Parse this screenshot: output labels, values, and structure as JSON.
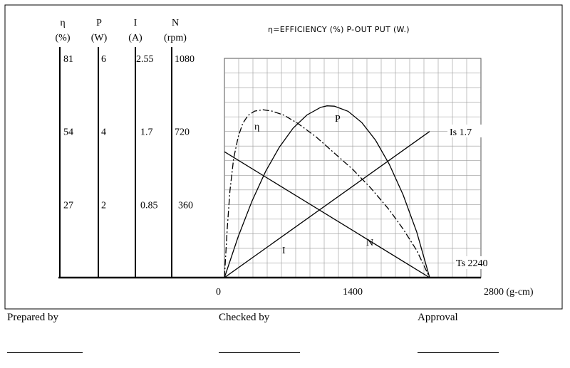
{
  "chart_data": {
    "type": "line",
    "title": "η=EFFICIENCY (%)  P-OUT PUT (W.)",
    "xlabel": "(g-cm)",
    "x_ticks": [
      0,
      1400,
      2800
    ],
    "x_tick_labels": [
      "0",
      "1400",
      "2800"
    ],
    "xlim": [
      0,
      2800
    ],
    "grid": true,
    "axes": [
      {
        "symbol": "η",
        "unit": "(%)",
        "ticks": [
          "81",
          "54",
          "27"
        ],
        "values": [
          81,
          54,
          27
        ],
        "ylim": [
          0,
          81
        ]
      },
      {
        "symbol": "P",
        "unit": "(W)",
        "ticks": [
          "6",
          "4",
          "2"
        ],
        "values": [
          6,
          4,
          2
        ],
        "ylim": [
          0,
          6
        ]
      },
      {
        "symbol": "I",
        "unit": "(A)",
        "ticks": [
          "2.55",
          "1.7",
          "0.85"
        ],
        "values": [
          2.55,
          1.7,
          0.85
        ],
        "ylim": [
          0,
          2.55
        ]
      },
      {
        "symbol": "N",
        "unit": "(rpm)",
        "ticks": [
          "1080",
          "720",
          "360"
        ],
        "values": [
          1080,
          720,
          360
        ],
        "ylim": [
          0,
          1080
        ]
      }
    ],
    "series": [
      {
        "name": "η",
        "axis": "η",
        "style": "dashdot",
        "x": [
          0,
          30,
          60,
          100,
          150,
          200,
          260,
          330,
          420,
          520,
          650,
          800,
          1000,
          1200,
          1400,
          1600,
          1800,
          1950,
          2100,
          2240
        ],
        "y": [
          0,
          18,
          32,
          44,
          52,
          57,
          60,
          61.5,
          62,
          61.5,
          60,
          57,
          52,
          46,
          40,
          33,
          25,
          18,
          10,
          0
        ]
      },
      {
        "name": "P",
        "axis": "P",
        "style": "solid",
        "x": [
          0,
          150,
          300,
          450,
          600,
          750,
          900,
          1050,
          1120,
          1200,
          1350,
          1500,
          1650,
          1800,
          1950,
          2100,
          2240
        ],
        "y": [
          0,
          1.12,
          2.09,
          2.91,
          3.57,
          4.09,
          4.45,
          4.66,
          4.7,
          4.69,
          4.55,
          4.24,
          3.76,
          3.1,
          2.27,
          1.24,
          0
        ]
      },
      {
        "name": "I",
        "axis": "I",
        "style": "solid",
        "x": [
          0,
          2240
        ],
        "y": [
          0,
          1.7
        ]
      },
      {
        "name": "N",
        "axis": "N",
        "style": "solid",
        "x": [
          0,
          2240
        ],
        "y": [
          620,
          0
        ]
      }
    ],
    "annotations": {
      "eta": "η",
      "p": "P",
      "i": "I",
      "n": "N",
      "is": "Is 1.7",
      "ts": "Ts 2240",
      "x_end": "2800 (g-cm)"
    }
  },
  "footer": {
    "prepared": "Prepared  by",
    "checked": "Checked by",
    "approval": "Approval"
  }
}
